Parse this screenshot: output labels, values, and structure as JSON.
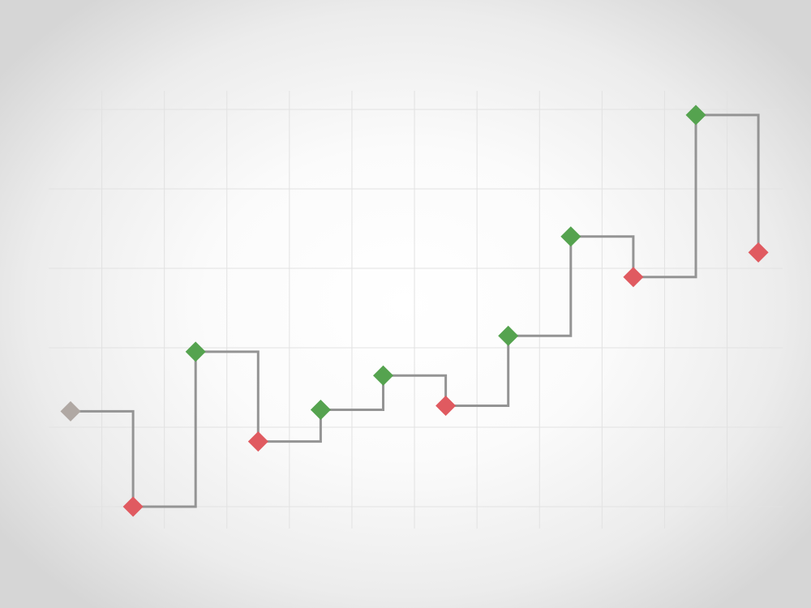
{
  "chart_data": {
    "type": "line",
    "style": "step-after",
    "title": "",
    "xlabel": "",
    "ylabel": "",
    "grid": true,
    "legend": "none",
    "xlim": [
      -0.5,
      11.5
    ],
    "ylim": [
      0,
      5.5
    ],
    "x": [
      0,
      1,
      2,
      3,
      4,
      5,
      6,
      7,
      8,
      9,
      10,
      11
    ],
    "series": [
      {
        "values": [
          1.2,
          0.0,
          1.95,
          0.82,
          1.22,
          1.65,
          1.27,
          2.15,
          3.4,
          2.89,
          4.93,
          3.2
        ],
        "direction": [
          "start",
          "down",
          "up",
          "down",
          "up",
          "up",
          "down",
          "up",
          "up",
          "down",
          "up",
          "down"
        ]
      }
    ],
    "colors": {
      "line": "#949494",
      "start": "#b0a8a3",
      "up": "#55a34f",
      "down": "#e05a60",
      "grid": "#e2e2e2"
    }
  }
}
